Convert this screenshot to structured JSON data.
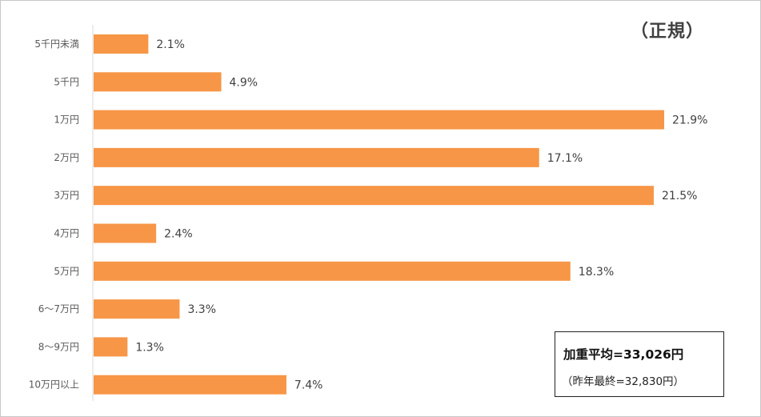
{
  "chart_data": {
    "type": "bar",
    "orientation": "horizontal",
    "subtitle": "（正規）",
    "categories": [
      "5千円未満",
      "5千円",
      "1万円",
      "2万円",
      "3万円",
      "4万円",
      "5万円",
      "6～7万円",
      "8～9万円",
      "10万円以上"
    ],
    "values": [
      2.1,
      4.9,
      21.9,
      17.1,
      21.5,
      2.4,
      18.3,
      3.3,
      1.3,
      7.4
    ],
    "value_labels": [
      "2.1%",
      "4.9%",
      "21.9%",
      "17.1%",
      "21.5%",
      "2.4%",
      "18.3%",
      "3.3%",
      "1.3%",
      "7.4%"
    ],
    "unit": "%",
    "xlim": [
      0,
      22
    ],
    "grid": false,
    "legend": "none",
    "bar_color": "#F79646",
    "axis_color": "#D9D9D9",
    "annotation": {
      "main": "加重平均=33,026円",
      "sub": "（昨年最終=32,830円）"
    }
  }
}
